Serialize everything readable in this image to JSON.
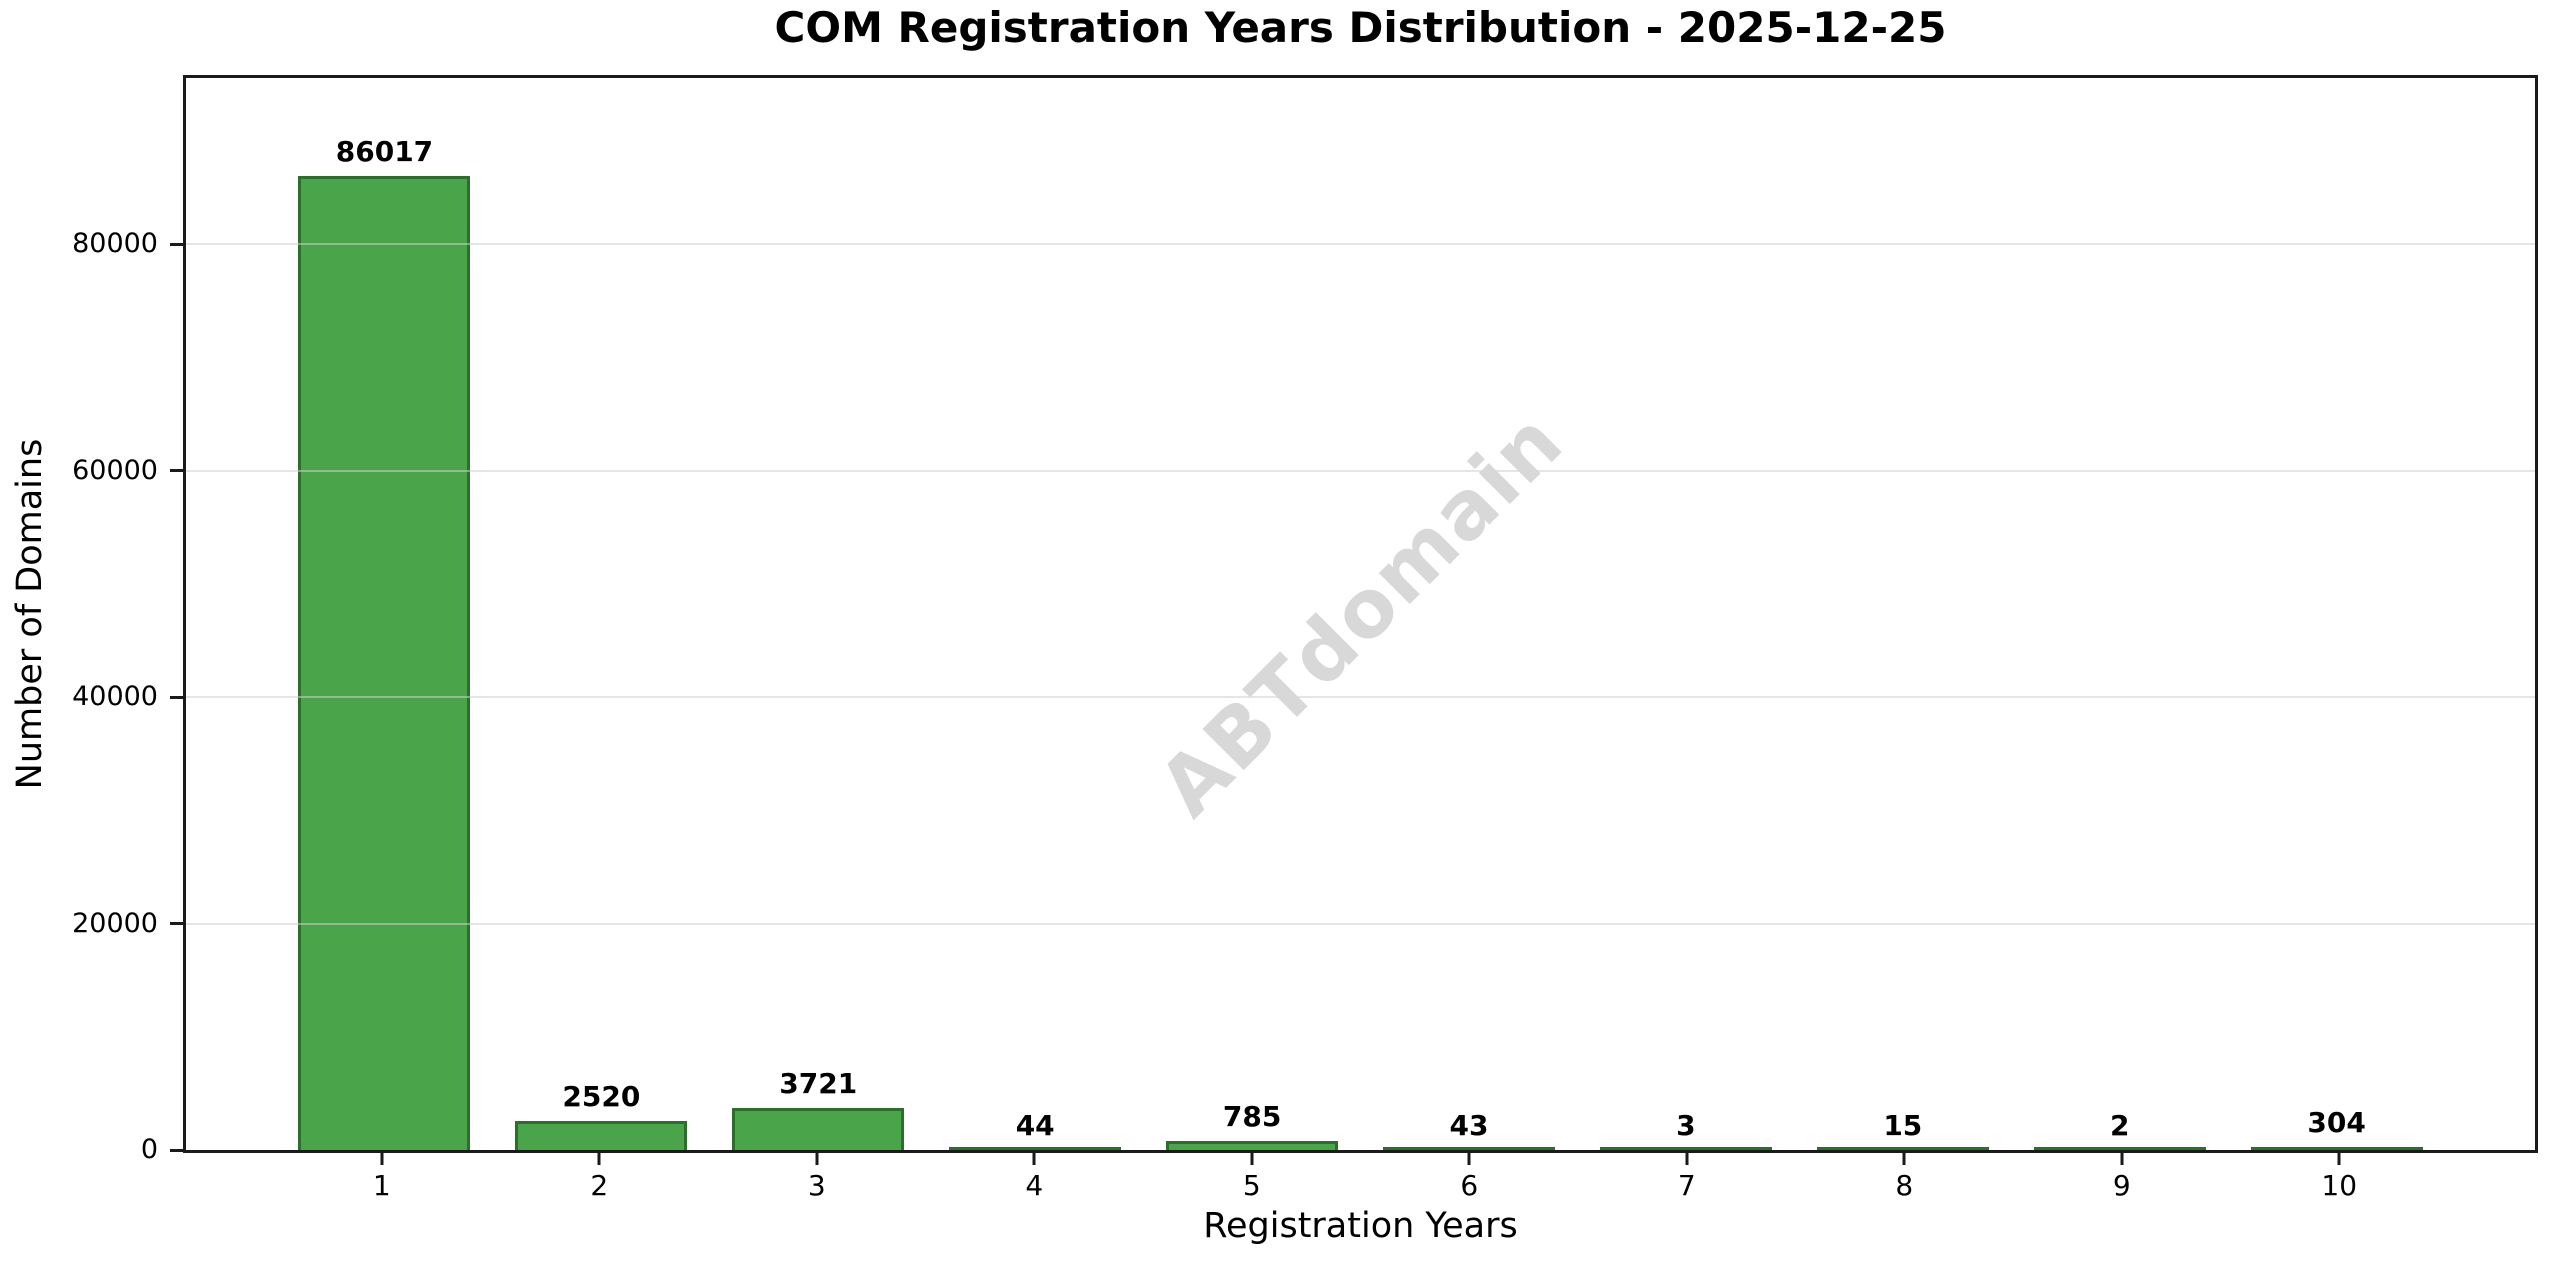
{
  "figure": {
    "title": "COM Registration Years Distribution - 2025-12-25",
    "watermark": "ABTdomain"
  },
  "chart_data": {
    "type": "bar",
    "title": "COM Registration Years Distribution - 2025-12-25",
    "xlabel": "Registration Years",
    "ylabel": "Number of Domains",
    "categories": [
      "1",
      "2",
      "3",
      "4",
      "5",
      "6",
      "7",
      "8",
      "9",
      "10"
    ],
    "values": [
      86017,
      2520,
      3721,
      44,
      785,
      43,
      3,
      15,
      2,
      304
    ],
    "bar_labels": [
      "86017",
      "2520",
      "3721",
      "44",
      "785",
      "43",
      "3",
      "15",
      "2",
      "304"
    ],
    "ylim": [
      0,
      94700
    ],
    "yticks": [
      0,
      20000,
      40000,
      60000,
      80000
    ],
    "ytick_labels": [
      "0",
      "20000",
      "40000",
      "60000",
      "80000"
    ],
    "grid": "horizontal",
    "legend": "none",
    "watermark": "ABTdomain",
    "colors": {
      "bar_fill": "#4aa44a",
      "bar_edge": "#2a702a",
      "grid": "#d0d0d0",
      "watermark": "#d8d8d8",
      "spine": "#1a1a1a",
      "text": "#000000"
    }
  }
}
